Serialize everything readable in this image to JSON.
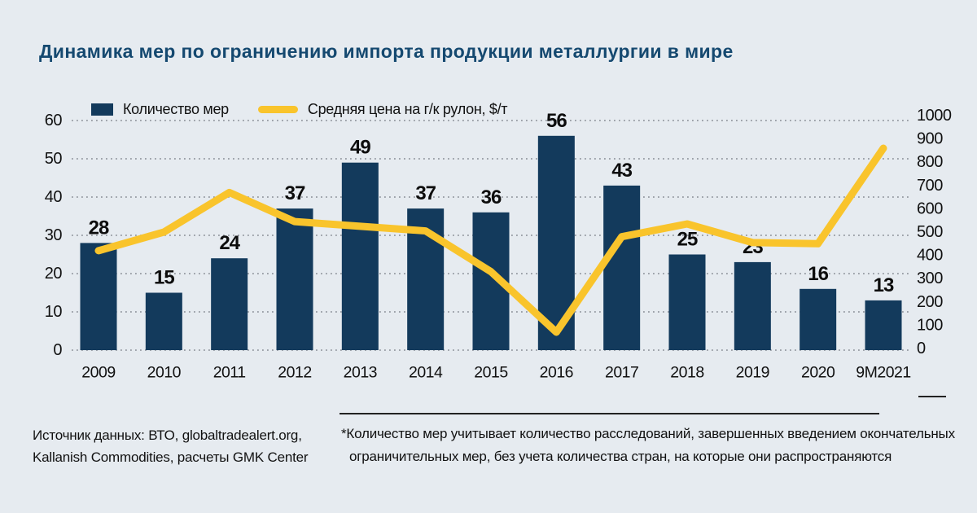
{
  "title": "Динамика мер по ограничению импорта продукции металлургии в мире",
  "chart_data": {
    "type": "combo",
    "categories": [
      "2009",
      "2010",
      "2011",
      "2012",
      "2013",
      "2014",
      "2015",
      "2016",
      "2017",
      "2018",
      "2019",
      "2020",
      "9M2021"
    ],
    "series": [
      {
        "name": "Количество мер",
        "type": "bar",
        "axis": "left",
        "values": [
          28,
          15,
          24,
          37,
          49,
          37,
          36,
          56,
          43,
          25,
          23,
          16,
          13
        ]
      },
      {
        "name": "Средняя цена на г/к рулон, $/т",
        "type": "line",
        "axis": "right",
        "values": [
          420,
          500,
          670,
          545,
          525,
          505,
          330,
          70,
          480,
          535,
          455,
          450,
          860
        ]
      }
    ],
    "left_axis": {
      "min": 0,
      "max": 60,
      "ticks": [
        0,
        10,
        20,
        30,
        40,
        50,
        60
      ]
    },
    "right_axis": {
      "min": 0,
      "max": 1000,
      "ticks": [
        0,
        100,
        200,
        300,
        400,
        500,
        600,
        700,
        800,
        900,
        1000
      ]
    },
    "grid": "horizontal-dotted",
    "legend_position": "top-left",
    "bar_value_labels": true
  },
  "footer": {
    "source_lines": [
      "Источник данных: ВТО, globaltradealert.org,",
      "Kallanish Commodities, расчеты GMK Center"
    ],
    "footnote_lines": [
      "*Количество мер учитывает количество расследований, завершенных введением окончательных",
      "ограничительных мер, без учета количества стран, на которые они распространяются"
    ]
  },
  "colors": {
    "background": "#e6ebf0",
    "bar": "#133a5c",
    "line": "#f9c42c",
    "title": "#154970",
    "grid": "#858b93",
    "text": "#111111"
  }
}
